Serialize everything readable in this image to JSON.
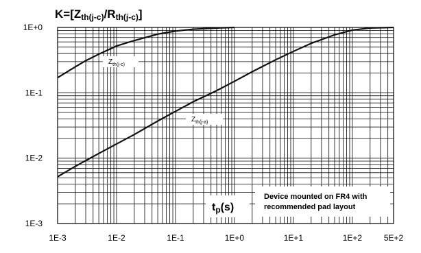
{
  "chart_data": {
    "type": "line",
    "title": {
      "prefix": "K=[Z",
      "sub1": "th(j-c)",
      "mid": "/R",
      "sub2": "th(j-c)",
      "suffix": "]"
    },
    "xlabel": {
      "main": "t",
      "sub": "p",
      "suffix": "(s)"
    },
    "ylabel": "",
    "x_scale": "log",
    "y_scale": "log",
    "xlim": [
      0.001,
      500
    ],
    "ylim": [
      0.001,
      1
    ],
    "x_ticks": [
      {
        "value": 0.001,
        "label": "1E-3"
      },
      {
        "value": 0.01,
        "label": "1E-2"
      },
      {
        "value": 0.1,
        "label": "1E-1"
      },
      {
        "value": 1,
        "label": "1E+0"
      },
      {
        "value": 10,
        "label": "1E+1"
      },
      {
        "value": 100,
        "label": "1E+2"
      },
      {
        "value": 500,
        "label": "5E+2"
      }
    ],
    "y_ticks": [
      {
        "value": 0.001,
        "label": "1E-3"
      },
      {
        "value": 0.01,
        "label": "1E-2"
      },
      {
        "value": 0.1,
        "label": "1E-1"
      },
      {
        "value": 1,
        "label": "1E+0"
      }
    ],
    "grid": true,
    "series": [
      {
        "name": {
          "main": "Z",
          "sub": "th(j-c)"
        },
        "x": [
          0.001,
          0.002,
          0.003,
          0.005,
          0.01,
          0.02,
          0.05,
          0.1,
          0.2,
          0.5,
          1
        ],
        "y": [
          0.17,
          0.25,
          0.31,
          0.39,
          0.52,
          0.63,
          0.79,
          0.88,
          0.94,
          0.98,
          1.0
        ]
      },
      {
        "name": {
          "main": "Z",
          "sub": "th(j-a)"
        },
        "x": [
          0.001,
          0.002,
          0.005,
          0.01,
          0.02,
          0.05,
          0.1,
          0.2,
          0.5,
          1,
          2,
          5,
          10,
          20,
          50,
          100,
          200,
          500
        ],
        "y": [
          0.0052,
          0.0075,
          0.0118,
          0.0165,
          0.023,
          0.037,
          0.052,
          0.073,
          0.108,
          0.15,
          0.21,
          0.32,
          0.43,
          0.57,
          0.77,
          0.91,
          0.98,
          1.0
        ]
      }
    ],
    "annotations": {
      "note_line1": "Device mounted on FR4 with",
      "note_line2": "recommended pad layout"
    }
  }
}
